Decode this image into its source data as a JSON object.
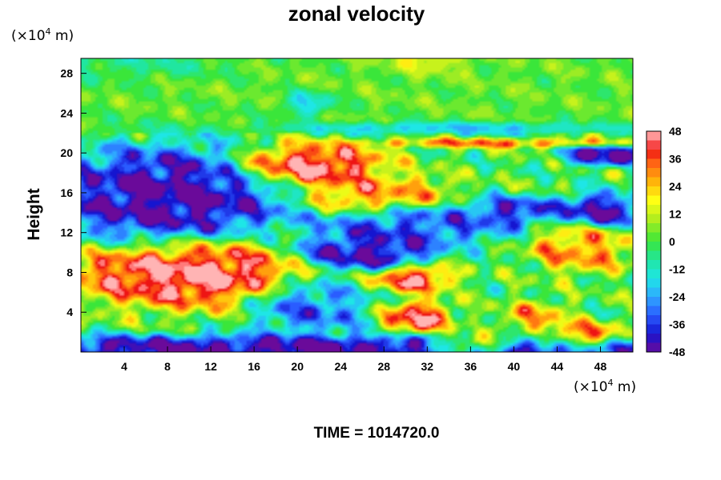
{
  "chart_data": {
    "type": "heatmap",
    "title": "zonal velocity",
    "ylabel": "Height",
    "y_unit": {
      "prefix": "(×10",
      "exp": "4",
      "suffix": " m)"
    },
    "x_unit": {
      "prefix": "(×10",
      "exp": "4",
      "suffix": " m)"
    },
    "xlim": [
      0,
      51
    ],
    "ylim": [
      0,
      29.5
    ],
    "x_ticks": [
      4,
      8,
      12,
      16,
      20,
      24,
      28,
      32,
      36,
      40,
      44,
      48
    ],
    "y_ticks": [
      4,
      8,
      12,
      16,
      20,
      24,
      28
    ],
    "colorbar": {
      "min": -48,
      "max": 48,
      "ticks": [
        48,
        36,
        24,
        12,
        0,
        -12,
        -24,
        -36,
        -48
      ],
      "stops": [
        {
          "v": -48,
          "color": "#6a0a9a"
        },
        {
          "v": -40,
          "color": "#1515d0"
        },
        {
          "v": -32,
          "color": "#2a5cff"
        },
        {
          "v": -24,
          "color": "#2fa8ff"
        },
        {
          "v": -16,
          "color": "#1ee6e6"
        },
        {
          "v": -8,
          "color": "#20e6a0"
        },
        {
          "v": 0,
          "color": "#3ae63a"
        },
        {
          "v": 10,
          "color": "#b4ee1e"
        },
        {
          "v": 18,
          "color": "#ffff14"
        },
        {
          "v": 26,
          "color": "#ffb40a"
        },
        {
          "v": 34,
          "color": "#ff6414"
        },
        {
          "v": 40,
          "color": "#ee1414"
        },
        {
          "v": 44,
          "color": "#ff7a7a"
        },
        {
          "v": 48,
          "color": "#ffb4b4"
        }
      ]
    },
    "regions": [
      {
        "name": "upper-green-band",
        "x": 25,
        "y": 27,
        "sx": 40,
        "sy": 4,
        "v": 4
      },
      {
        "name": "yellow-cap",
        "x": 32,
        "y": 29.5,
        "sx": 3,
        "sy": 1.2,
        "v": 30
      },
      {
        "name": "top-left-cyan",
        "x": 5,
        "y": 29,
        "sx": 8,
        "sy": 1.5,
        "v": -14
      },
      {
        "name": "blue-eddy-25",
        "x": 21,
        "y": 25,
        "sx": 2,
        "sy": 1,
        "v": -38
      },
      {
        "name": "upper-blue-streak",
        "x": 34,
        "y": 22.5,
        "sx": 12,
        "sy": 0.5,
        "v": -30
      },
      {
        "name": "red-streak-21",
        "x": 38,
        "y": 21,
        "sx": 10,
        "sy": 0.35,
        "v": 40
      },
      {
        "name": "left-purple",
        "x": 8,
        "y": 15.5,
        "sx": 8,
        "sy": 4,
        "v": -60
      },
      {
        "name": "pink-top",
        "x": 21,
        "y": 18.8,
        "sx": 5,
        "sy": 1.6,
        "v": 60
      },
      {
        "name": "red-mid-left",
        "x": 26,
        "y": 15.8,
        "sx": 4,
        "sy": 1.3,
        "v": 38
      },
      {
        "name": "orange-mid",
        "x": 31,
        "y": 16.2,
        "sx": 2.5,
        "sy": 1.2,
        "v": 26
      },
      {
        "name": "mid-blue",
        "x": 31,
        "y": 12.5,
        "sx": 7,
        "sy": 1.6,
        "v": -42
      },
      {
        "name": "purple-mid",
        "x": 26,
        "y": 10,
        "sx": 5,
        "sy": 1.4,
        "v": -58
      },
      {
        "name": "right-purple",
        "x": 48,
        "y": 14.2,
        "sx": 3,
        "sy": 1.3,
        "v": -56
      },
      {
        "name": "purple-39",
        "x": 40,
        "y": 14.2,
        "sx": 3,
        "sy": 1,
        "v": -50
      },
      {
        "name": "right-red",
        "x": 46,
        "y": 10.5,
        "sx": 3.5,
        "sy": 1.8,
        "v": 36
      },
      {
        "name": "top-right-purple",
        "x": 48.5,
        "y": 19.8,
        "sx": 3,
        "sy": 0.8,
        "v": -60
      },
      {
        "name": "left-pink",
        "x": 10,
        "y": 8.2,
        "sx": 8,
        "sy": 2.6,
        "v": 62
      },
      {
        "name": "pink-30",
        "x": 31,
        "y": 7.5,
        "sx": 3,
        "sy": 1,
        "v": 55
      },
      {
        "name": "pink-31-low",
        "x": 31,
        "y": 3.5,
        "sx": 2.3,
        "sy": 1.2,
        "v": 52
      },
      {
        "name": "lower-blue",
        "x": 21,
        "y": 4.5,
        "sx": 4,
        "sy": 2.2,
        "v": -38
      },
      {
        "name": "bottom-purple",
        "x": 20,
        "y": 0.3,
        "sx": 30,
        "sy": 1,
        "v": -60
      },
      {
        "name": "bottom-pink",
        "x": 36,
        "y": 0.6,
        "sx": 3,
        "sy": 0.8,
        "v": 55
      },
      {
        "name": "orange-42",
        "x": 42,
        "y": 3.5,
        "sx": 2.2,
        "sy": 1.2,
        "v": 30
      },
      {
        "name": "bottom-red-46",
        "x": 46.5,
        "y": 1.6,
        "sx": 2.5,
        "sy": 1,
        "v": 42
      },
      {
        "name": "green-center",
        "x": 37,
        "y": 8.5,
        "sx": 3,
        "sy": 2,
        "v": 0
      }
    ],
    "plot_bg": "#ffffff"
  },
  "footer": {
    "text": "TIME = 1014720.0"
  }
}
